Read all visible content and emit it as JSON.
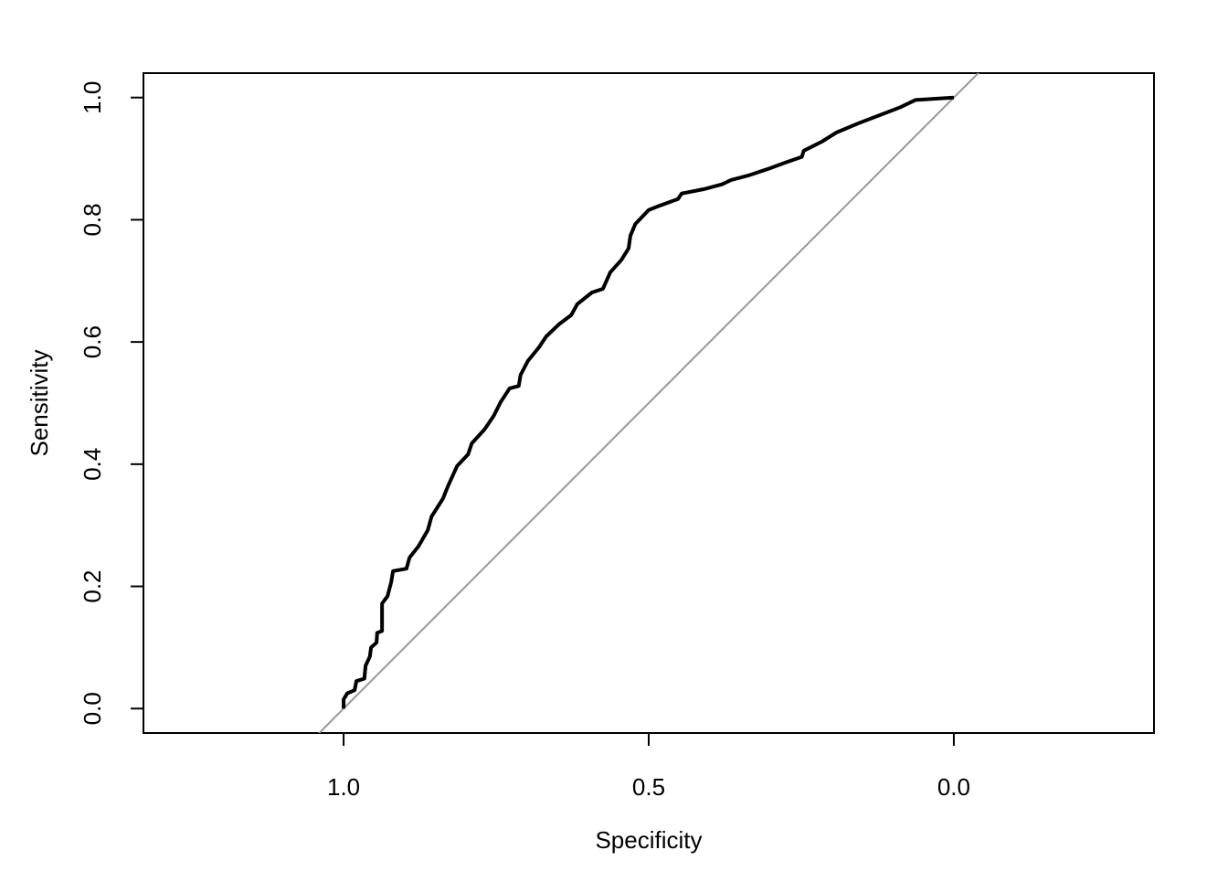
{
  "chart_data": {
    "type": "line",
    "xlabel": "Specificity",
    "ylabel": "Sensitivity",
    "x": [
      1.0,
      1.0,
      0.994,
      0.982,
      0.979,
      0.966,
      0.964,
      0.957,
      0.955,
      0.946,
      0.945,
      0.937,
      0.937,
      0.928,
      0.922,
      0.919,
      0.897,
      0.892,
      0.877,
      0.862,
      0.856,
      0.837,
      0.829,
      0.814,
      0.796,
      0.79,
      0.769,
      0.754,
      0.743,
      0.728,
      0.713,
      0.71,
      0.698,
      0.68,
      0.668,
      0.647,
      0.627,
      0.617,
      0.593,
      0.575,
      0.563,
      0.545,
      0.533,
      0.53,
      0.522,
      0.5,
      0.485,
      0.452,
      0.446,
      0.41,
      0.38,
      0.365,
      0.335,
      0.305,
      0.275,
      0.249,
      0.246,
      0.216,
      0.192,
      0.156,
      0.088,
      0.063,
      0.0
    ],
    "values": [
      0.0,
      0.015,
      0.025,
      0.03,
      0.045,
      0.049,
      0.07,
      0.085,
      0.1,
      0.108,
      0.124,
      0.127,
      0.172,
      0.184,
      0.207,
      0.225,
      0.229,
      0.247,
      0.266,
      0.292,
      0.314,
      0.344,
      0.364,
      0.397,
      0.416,
      0.434,
      0.457,
      0.479,
      0.501,
      0.524,
      0.528,
      0.546,
      0.569,
      0.591,
      0.609,
      0.629,
      0.644,
      0.662,
      0.681,
      0.687,
      0.714,
      0.734,
      0.753,
      0.774,
      0.793,
      0.816,
      0.822,
      0.834,
      0.843,
      0.85,
      0.858,
      0.865,
      0.873,
      0.883,
      0.894,
      0.903,
      0.913,
      0.928,
      0.943,
      0.958,
      0.984,
      0.996,
      1.0
    ],
    "color": "#000000",
    "reference_color": "#999999",
    "xlim": [
      1.328,
      -0.328
    ],
    "ylim": [
      -0.04,
      1.04
    ],
    "xticks": [
      {
        "value": 1,
        "label": "1.0"
      },
      {
        "value": 0.5,
        "label": "0.5"
      },
      {
        "value": 0,
        "label": "0.0"
      }
    ],
    "yticks": [
      {
        "value": 0,
        "label": "0.0"
      },
      {
        "value": 0.2,
        "label": "0.2"
      },
      {
        "value": 0.4,
        "label": "0.4"
      },
      {
        "value": 0.6,
        "label": "0.6"
      },
      {
        "value": 0.8,
        "label": "0.8"
      },
      {
        "value": 1,
        "label": "1.0"
      }
    ]
  }
}
